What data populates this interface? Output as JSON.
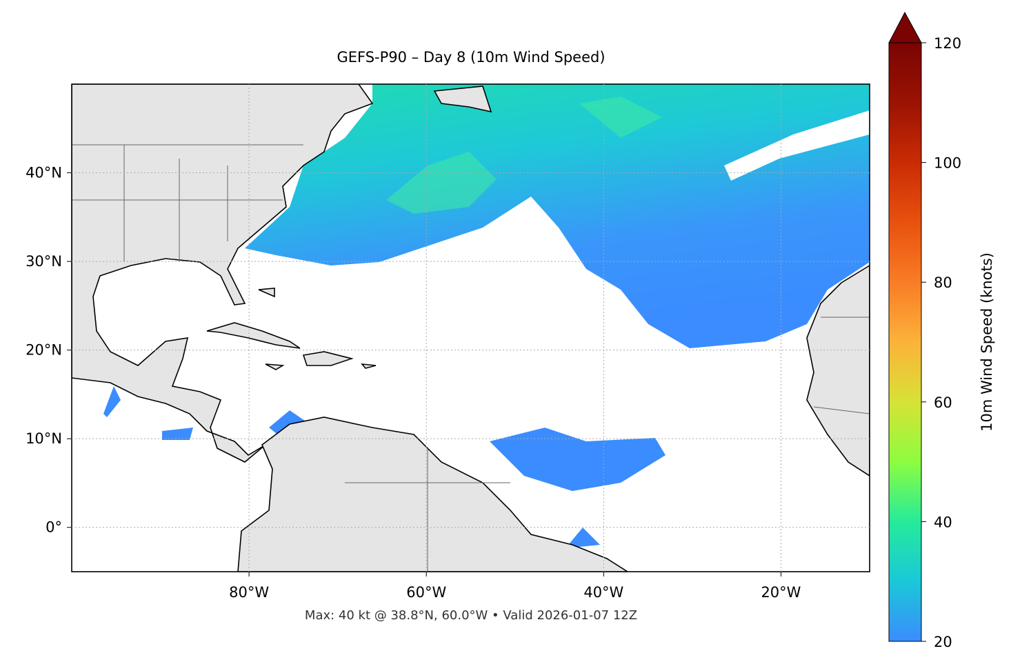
{
  "map": {
    "title": "GEFS-P90 – Day 8 (10m Wind Speed)",
    "note": "Max: 40 kt @ 38.8°N, 60.0°W • Valid 2026-01-07 12Z",
    "lonlim": [
      -100,
      -10
    ],
    "latlim": [
      -5,
      50
    ],
    "lon_ticks": [
      {
        "value": -80,
        "label": "80°W"
      },
      {
        "value": -60,
        "label": "60°W"
      },
      {
        "value": -40,
        "label": "40°W"
      },
      {
        "value": -20,
        "label": "20°W"
      }
    ],
    "lat_ticks": [
      {
        "value": 0,
        "label": "0°"
      },
      {
        "value": 10,
        "label": "10°N"
      },
      {
        "value": 20,
        "label": "20°N"
      },
      {
        "value": 30,
        "label": "30°N"
      },
      {
        "value": 40,
        "label": "40°N"
      }
    ],
    "colorbar": {
      "label": "10m Wind Speed (knots)",
      "lim": [
        20,
        120
      ],
      "ticks": [
        20,
        40,
        60,
        80,
        100,
        120
      ]
    }
  }
}
